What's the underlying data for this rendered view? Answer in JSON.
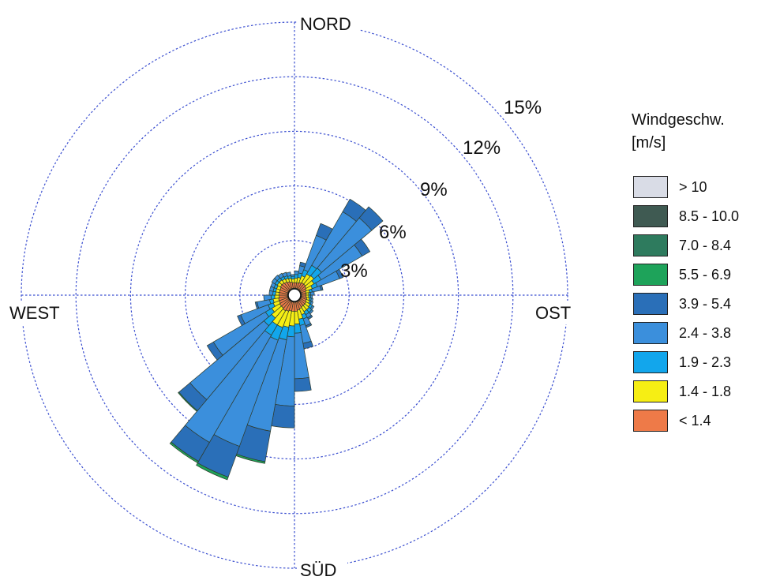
{
  "chart_data": {
    "type": "wind-rose",
    "title": "",
    "directions": {
      "north": "NORD",
      "east": "OST",
      "south": "SÜD",
      "west": "WEST"
    },
    "sector_count": 36,
    "sector_start_deg": [
      0,
      10,
      20,
      30,
      40,
      50,
      60,
      70,
      80,
      90,
      100,
      110,
      120,
      130,
      140,
      150,
      160,
      170,
      180,
      190,
      200,
      210,
      220,
      230,
      240,
      250,
      260,
      270,
      280,
      290,
      300,
      310,
      320,
      330,
      340,
      350
    ],
    "radial_ticks": [
      3,
      6,
      9,
      12,
      15
    ],
    "radial_tick_labels": [
      "3%",
      "6%",
      "9%",
      "12%",
      "15%"
    ],
    "radial_max": 15,
    "legend": {
      "title_line1": "Windgeschw.",
      "title_line2": "[m/s]",
      "classes": [
        {
          "label": "> 10",
          "color": "#d9dce6"
        },
        {
          "label": "8.5 - 10.0",
          "color": "#3f5a52"
        },
        {
          "label": "7.0 - 8.4",
          "color": "#2e7b5e"
        },
        {
          "label": "5.5 - 6.9",
          "color": "#1ea35a"
        },
        {
          "label": "3.9 - 5.4",
          "color": "#2a6fb8"
        },
        {
          "label": "2.4 - 3.8",
          "color": "#3b8fdc"
        },
        {
          "label": "1.9 - 2.3",
          "color": "#12a6ec"
        },
        {
          "label": "1.4 - 1.8",
          "color": "#f6ee14"
        },
        {
          "label": "< 1.4",
          "color": "#ee7a48"
        }
      ]
    },
    "series": [
      {
        "name": "< 1.4",
        "values": [
          0.3,
          0.3,
          0.35,
          0.4,
          0.4,
          0.35,
          0.3,
          0.25,
          0.25,
          0.25,
          0.3,
          0.3,
          0.35,
          0.35,
          0.35,
          0.4,
          0.45,
          0.5,
          0.5,
          0.5,
          0.55,
          0.6,
          0.55,
          0.55,
          0.5,
          0.5,
          0.45,
          0.45,
          0.45,
          0.45,
          0.5,
          0.5,
          0.45,
          0.4,
          0.35,
          0.3
        ]
      },
      {
        "name": "1.4 - 1.8",
        "values": [
          0.25,
          0.3,
          0.4,
          0.55,
          0.6,
          0.5,
          0.35,
          0.2,
          0.15,
          0.15,
          0.15,
          0.2,
          0.25,
          0.3,
          0.3,
          0.35,
          0.5,
          0.7,
          0.8,
          0.9,
          0.95,
          0.9,
          0.7,
          0.5,
          0.35,
          0.3,
          0.25,
          0.2,
          0.2,
          0.2,
          0.2,
          0.2,
          0.2,
          0.2,
          0.2,
          0.2
        ]
      },
      {
        "name": "1.9 - 2.3",
        "values": [
          0.2,
          0.25,
          0.35,
          0.55,
          0.55,
          0.45,
          0.3,
          0.15,
          0.1,
          0.1,
          0.1,
          0.1,
          0.15,
          0.2,
          0.2,
          0.25,
          0.35,
          0.5,
          0.6,
          0.7,
          0.75,
          0.65,
          0.55,
          0.4,
          0.3,
          0.2,
          0.2,
          0.15,
          0.15,
          0.15,
          0.15,
          0.15,
          0.15,
          0.15,
          0.15,
          0.15
        ]
      },
      {
        "name": "2.4 - 3.8",
        "values": [
          0.2,
          0.4,
          2.0,
          3.4,
          3.6,
          2.6,
          1.3,
          0.5,
          0.2,
          0.1,
          0.1,
          0.1,
          0.1,
          0.1,
          0.2,
          0.4,
          1.0,
          2.5,
          3.8,
          5.1,
          6.2,
          6.8,
          5.3,
          3.3,
          1.6,
          0.7,
          0.4,
          0.2,
          0.2,
          0.2,
          0.2,
          0.2,
          0.2,
          0.2,
          0.2,
          0.1
        ]
      },
      {
        "name": "3.9 - 5.4",
        "values": [
          0.0,
          0.2,
          0.7,
          0.8,
          0.8,
          0.5,
          0.2,
          0.1,
          0.0,
          0.0,
          0.0,
          0.0,
          0.0,
          0.0,
          0.1,
          0.1,
          0.3,
          0.7,
          1.2,
          1.7,
          1.8,
          1.2,
          0.8,
          0.4,
          0.2,
          0.1,
          0.0,
          0.0,
          0.0,
          0.0,
          0.0,
          0.0,
          0.0,
          0.0,
          0.0,
          0.0
        ]
      },
      {
        "name": "5.5 - 6.9",
        "values": [
          0.0,
          0.0,
          0.0,
          0.0,
          0.0,
          0.0,
          0.0,
          0.0,
          0.0,
          0.0,
          0.0,
          0.0,
          0.0,
          0.0,
          0.0,
          0.0,
          0.0,
          0.0,
          0.0,
          0.1,
          0.15,
          0.1,
          0.05,
          0.0,
          0.0,
          0.0,
          0.0,
          0.0,
          0.0,
          0.0,
          0.0,
          0.0,
          0.0,
          0.0,
          0.0,
          0.0
        ]
      },
      {
        "name": "7.0 - 8.4",
        "values": [
          0.0,
          0.0,
          0.0,
          0.0,
          0.0,
          0.0,
          0.0,
          0.0,
          0.0,
          0.0,
          0.0,
          0.0,
          0.0,
          0.0,
          0.0,
          0.0,
          0.0,
          0.0,
          0.0,
          0.0,
          0.0,
          0.0,
          0.0,
          0.0,
          0.0,
          0.0,
          0.0,
          0.0,
          0.0,
          0.0,
          0.0,
          0.0,
          0.0,
          0.0,
          0.0,
          0.0
        ]
      },
      {
        "name": "8.5 - 10.0",
        "values": [
          0.0,
          0.0,
          0.0,
          0.0,
          0.0,
          0.0,
          0.0,
          0.0,
          0.0,
          0.0,
          0.0,
          0.0,
          0.0,
          0.0,
          0.0,
          0.0,
          0.0,
          0.0,
          0.0,
          0.0,
          0.0,
          0.0,
          0.0,
          0.0,
          0.0,
          0.0,
          0.0,
          0.0,
          0.0,
          0.0,
          0.0,
          0.0,
          0.0,
          0.0,
          0.0,
          0.0
        ]
      },
      {
        "name": "> 10",
        "values": [
          0.0,
          0.0,
          0.0,
          0.0,
          0.0,
          0.0,
          0.0,
          0.0,
          0.0,
          0.0,
          0.0,
          0.0,
          0.0,
          0.0,
          0.0,
          0.0,
          0.0,
          0.0,
          0.0,
          0.0,
          0.0,
          0.0,
          0.0,
          0.0,
          0.0,
          0.0,
          0.0,
          0.0,
          0.0,
          0.0,
          0.0,
          0.0,
          0.0,
          0.0,
          0.0,
          0.0
        ]
      }
    ],
    "colors": {
      "grid": "#3b4fd0",
      "bar_outline": "#2f3a2a",
      "center": "#ffffff"
    }
  }
}
